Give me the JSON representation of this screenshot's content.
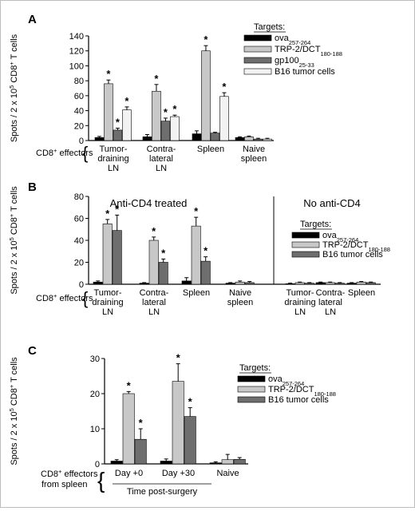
{
  "chart_data": [
    {
      "panel": "A",
      "type": "bar",
      "ylabel_main": "Spots / 2 x 10",
      "ylabel_exp": "5",
      "ylabel_mid": " CD8",
      "ylabel_sup": "+",
      "ylabel_end": " T cells",
      "ylim": [
        0,
        140
      ],
      "yticks": [
        "0",
        "20",
        "40",
        "60",
        "80",
        "100",
        "120",
        "140"
      ],
      "effector_label": "CD8",
      "effector_sup": "+",
      "effector_rest": " effectors",
      "legend_title": "Targets:",
      "categories": [
        {
          "lines": [
            "Tumor-",
            "draining",
            "LN"
          ]
        },
        {
          "lines": [
            "Contra-",
            "lateral",
            "LN"
          ]
        },
        {
          "lines": [
            "Spleen"
          ]
        },
        {
          "lines": [
            "Naive",
            "spleen"
          ]
        }
      ],
      "series": [
        {
          "name": "ova",
          "sub": "257-264",
          "color": "#000000",
          "values": [
            4,
            5,
            9,
            4
          ],
          "errors": [
            1.5,
            3,
            4,
            1
          ],
          "stars": [
            false,
            false,
            false,
            false
          ]
        },
        {
          "name": "TRP-2/DCT",
          "sub": "180-188",
          "color": "#c8c8c8",
          "values": [
            76,
            66,
            120,
            5
          ],
          "errors": [
            5,
            9,
            7,
            1
          ],
          "stars": [
            true,
            true,
            true,
            false
          ]
        },
        {
          "name": "gp100",
          "sub": "25-33",
          "color": "#6e6e6e",
          "values": [
            14,
            26,
            10,
            2
          ],
          "errors": [
            2.5,
            4,
            1,
            1
          ],
          "stars": [
            true,
            true,
            false,
            false
          ]
        },
        {
          "name": "B16 tumor cells",
          "sub": "",
          "color": "#f2f2f2",
          "values": [
            41,
            32,
            59,
            2
          ],
          "errors": [
            4,
            2,
            5,
            1
          ],
          "stars": [
            true,
            true,
            true,
            false
          ]
        }
      ]
    },
    {
      "panel": "B",
      "type": "bar",
      "ylabel_main": "Spots / 2 x 10",
      "ylabel_exp": "5",
      "ylabel_mid": " CD8",
      "ylabel_sup": "+",
      "ylabel_end": " T cells",
      "ylim": [
        0,
        80
      ],
      "yticks": [
        "0",
        "20",
        "40",
        "60",
        "80"
      ],
      "effector_label": "CD8",
      "effector_sup": "+",
      "effector_rest": " effectors",
      "group_titles": [
        "Anti-CD4 treated",
        "No anti-CD4"
      ],
      "legend_title": "Targets:",
      "categories": [
        {
          "lines": [
            "Tumor-",
            "draining",
            "LN"
          ]
        },
        {
          "lines": [
            "Contra-",
            "lateral",
            "LN"
          ]
        },
        {
          "lines": [
            "Spleen"
          ]
        },
        {
          "lines": [
            "Naive",
            "spleen"
          ]
        },
        {
          "lines": [
            "Tumor-",
            "draining",
            "LN"
          ]
        },
        {
          "lines": [
            "Contra-",
            "lateral",
            "LN"
          ]
        },
        {
          "lines": [
            "Spleen"
          ]
        }
      ],
      "series": [
        {
          "name": "ova",
          "sub": "257-264",
          "color": "#000000",
          "values": [
            2,
            1,
            3,
            1,
            0.5,
            1.5,
            1
          ],
          "errors": [
            1,
            0.5,
            3,
            0.5,
            0.5,
            0.5,
            0.5
          ],
          "stars": [
            false,
            false,
            false,
            false,
            false,
            false,
            false
          ]
        },
        {
          "name": "TRP-2/DCT",
          "sub": "180-188",
          "color": "#c8c8c8",
          "values": [
            55,
            40,
            53,
            2,
            1.5,
            1.5,
            2
          ],
          "errors": [
            4,
            3,
            8,
            1,
            0.5,
            0.5,
            0.5
          ],
          "stars": [
            true,
            true,
            true,
            false,
            false,
            false,
            false
          ]
        },
        {
          "name": "B16 tumor cells",
          "sub": "",
          "color": "#6e6e6e",
          "values": [
            49,
            20,
            21,
            1.5,
            1,
            1,
            1.5
          ],
          "errors": [
            14,
            3,
            4,
            1,
            0.5,
            0.5,
            0.5
          ],
          "stars": [
            true,
            true,
            true,
            false,
            false,
            false,
            false
          ]
        }
      ]
    },
    {
      "panel": "C",
      "type": "bar",
      "ylabel_main": "Spots / 2 x 10",
      "ylabel_exp": "5",
      "ylabel_mid": " CD8",
      "ylabel_sup": "+",
      "ylabel_end": " T cells",
      "ylim": [
        0,
        30
      ],
      "yticks": [
        "0",
        "10",
        "20",
        "30"
      ],
      "effector_label": "CD8",
      "effector_sup": "+",
      "effector_rest": " effectors",
      "effector_line2": "from spleen",
      "xlabel": "Time post-surgery",
      "legend_title": "Targets:",
      "categories": [
        {
          "lines": [
            "Day +0"
          ]
        },
        {
          "lines": [
            "Day +30"
          ]
        },
        {
          "lines": [
            "Naive"
          ]
        }
      ],
      "series": [
        {
          "name": "ova",
          "sub": "257-264",
          "color": "#000000",
          "values": [
            0.8,
            0.8,
            0.3
          ],
          "errors": [
            0.4,
            0.6,
            0.3
          ],
          "stars": [
            false,
            false,
            false
          ]
        },
        {
          "name": "TRP-2/DCT",
          "sub": "180-188",
          "color": "#c8c8c8",
          "values": [
            20,
            23.5,
            1.2
          ],
          "errors": [
            0.6,
            5,
            1.5
          ],
          "stars": [
            true,
            true,
            false
          ]
        },
        {
          "name": "B16 tumor cells",
          "sub": "",
          "color": "#6e6e6e",
          "values": [
            7,
            13.5,
            1.3
          ],
          "errors": [
            3,
            2.5,
            0.5
          ],
          "stars": [
            true,
            true,
            false
          ]
        }
      ]
    }
  ]
}
